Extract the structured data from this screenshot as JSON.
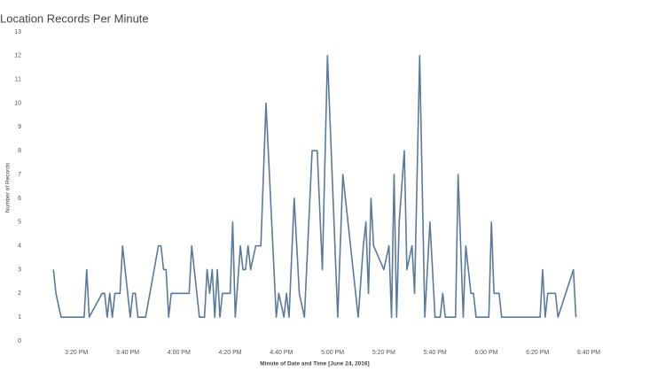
{
  "chart_data": {
    "type": "line",
    "title": "Location Records Per Minute",
    "x_label": "Minute of Date and Time [June 24, 2016]",
    "y_label": "Number of Records",
    "color": "#5a7a9c",
    "x": [
      "3:11 PM",
      "3:12 PM",
      "3:14 PM",
      "3:23 PM",
      "3:24 PM",
      "3:25 PM",
      "3:30 PM",
      "3:31 PM",
      "3:32 PM",
      "3:33 PM",
      "3:34 PM",
      "3:35 PM",
      "3:37 PM",
      "3:38 PM",
      "3:40 PM",
      "3:41 PM",
      "3:42 PM",
      "3:43 PM",
      "3:44 PM",
      "3:47 PM",
      "3:52 PM",
      "3:53 PM",
      "3:54 PM",
      "3:55 PM",
      "3:56 PM",
      "3:57 PM",
      "4:04 PM",
      "4:05 PM",
      "4:06 PM",
      "4:08 PM",
      "4:10 PM",
      "4:11 PM",
      "4:12 PM",
      "4:13 PM",
      "4:14 PM",
      "4:15 PM",
      "4:16 PM",
      "4:17 PM",
      "4:20 PM",
      "4:21 PM",
      "4:22 PM",
      "4:24 PM",
      "4:25 PM",
      "4:26 PM",
      "4:27 PM",
      "4:28 PM",
      "4:30 PM",
      "4:32 PM",
      "4:34 PM",
      "4:38 PM",
      "4:39 PM",
      "4:41 PM",
      "4:42 PM",
      "4:43 PM",
      "4:45 PM",
      "4:47 PM",
      "4:49 PM",
      "4:52 PM",
      "4:54 PM",
      "4:56 PM",
      "4:58 PM",
      "5:02 PM",
      "5:04 PM",
      "5:08 PM",
      "5:10 PM",
      "5:12 PM",
      "5:13 PM",
      "5:14 PM",
      "5:15 PM",
      "5:16 PM",
      "5:20 PM",
      "5:22 PM",
      "5:23 PM",
      "5:24 PM",
      "5:25 PM",
      "5:26 PM",
      "5:28 PM",
      "5:29 PM",
      "5:31 PM",
      "5:32 PM",
      "5:34 PM",
      "5:36 PM",
      "5:38 PM",
      "5:40 PM",
      "5:42 PM",
      "5:43 PM",
      "5:44 PM",
      "5:48 PM",
      "5:49 PM",
      "5:51 PM",
      "5:52 PM",
      "5:54 PM",
      "5:55 PM",
      "5:56 PM",
      "6:01 PM",
      "6:02 PM",
      "6:03 PM",
      "6:05 PM",
      "6:06 PM",
      "6:21 PM",
      "6:22 PM",
      "6:23 PM",
      "6:24 PM",
      "6:27 PM",
      "6:28 PM",
      "6:34 PM",
      "6:35 PM"
    ],
    "values": [
      3,
      2,
      1,
      1,
      3,
      1,
      2,
      2,
      1,
      2,
      1,
      2,
      2,
      4,
      2,
      1,
      2,
      2,
      1,
      1,
      4,
      4,
      3,
      3,
      1,
      2,
      2,
      4,
      3,
      1,
      1,
      3,
      2,
      3,
      1,
      3,
      1,
      2,
      2,
      5,
      1,
      4,
      3,
      3,
      4,
      3,
      4,
      4,
      10,
      1,
      2,
      1,
      2,
      1,
      6,
      2,
      1,
      8,
      8,
      3,
      12,
      1,
      7,
      3,
      1,
      4,
      5,
      2,
      6,
      4,
      3,
      4,
      1,
      7,
      1,
      5,
      8,
      3,
      4,
      2,
      12,
      1,
      5,
      1,
      1,
      2,
      1,
      1,
      7,
      1,
      4,
      2,
      2,
      1,
      1,
      5,
      2,
      2,
      1,
      1,
      3,
      1,
      2,
      2,
      1,
      3,
      1
    ],
    "xlim": [
      "3:04 PM",
      "6:49 PM"
    ],
    "xticks": [
      "3:20 PM",
      "3:40 PM",
      "4:00 PM",
      "4:20 PM",
      "4:40 PM",
      "5:00 PM",
      "5:20 PM",
      "5:40 PM",
      "6:00 PM",
      "6:20 PM",
      "6:40 PM"
    ],
    "ylim": [
      0,
      13
    ],
    "yticks": [
      0,
      1,
      2,
      3,
      4,
      5,
      6,
      7,
      8,
      9,
      10,
      11,
      12,
      13
    ],
    "grid": false
  }
}
